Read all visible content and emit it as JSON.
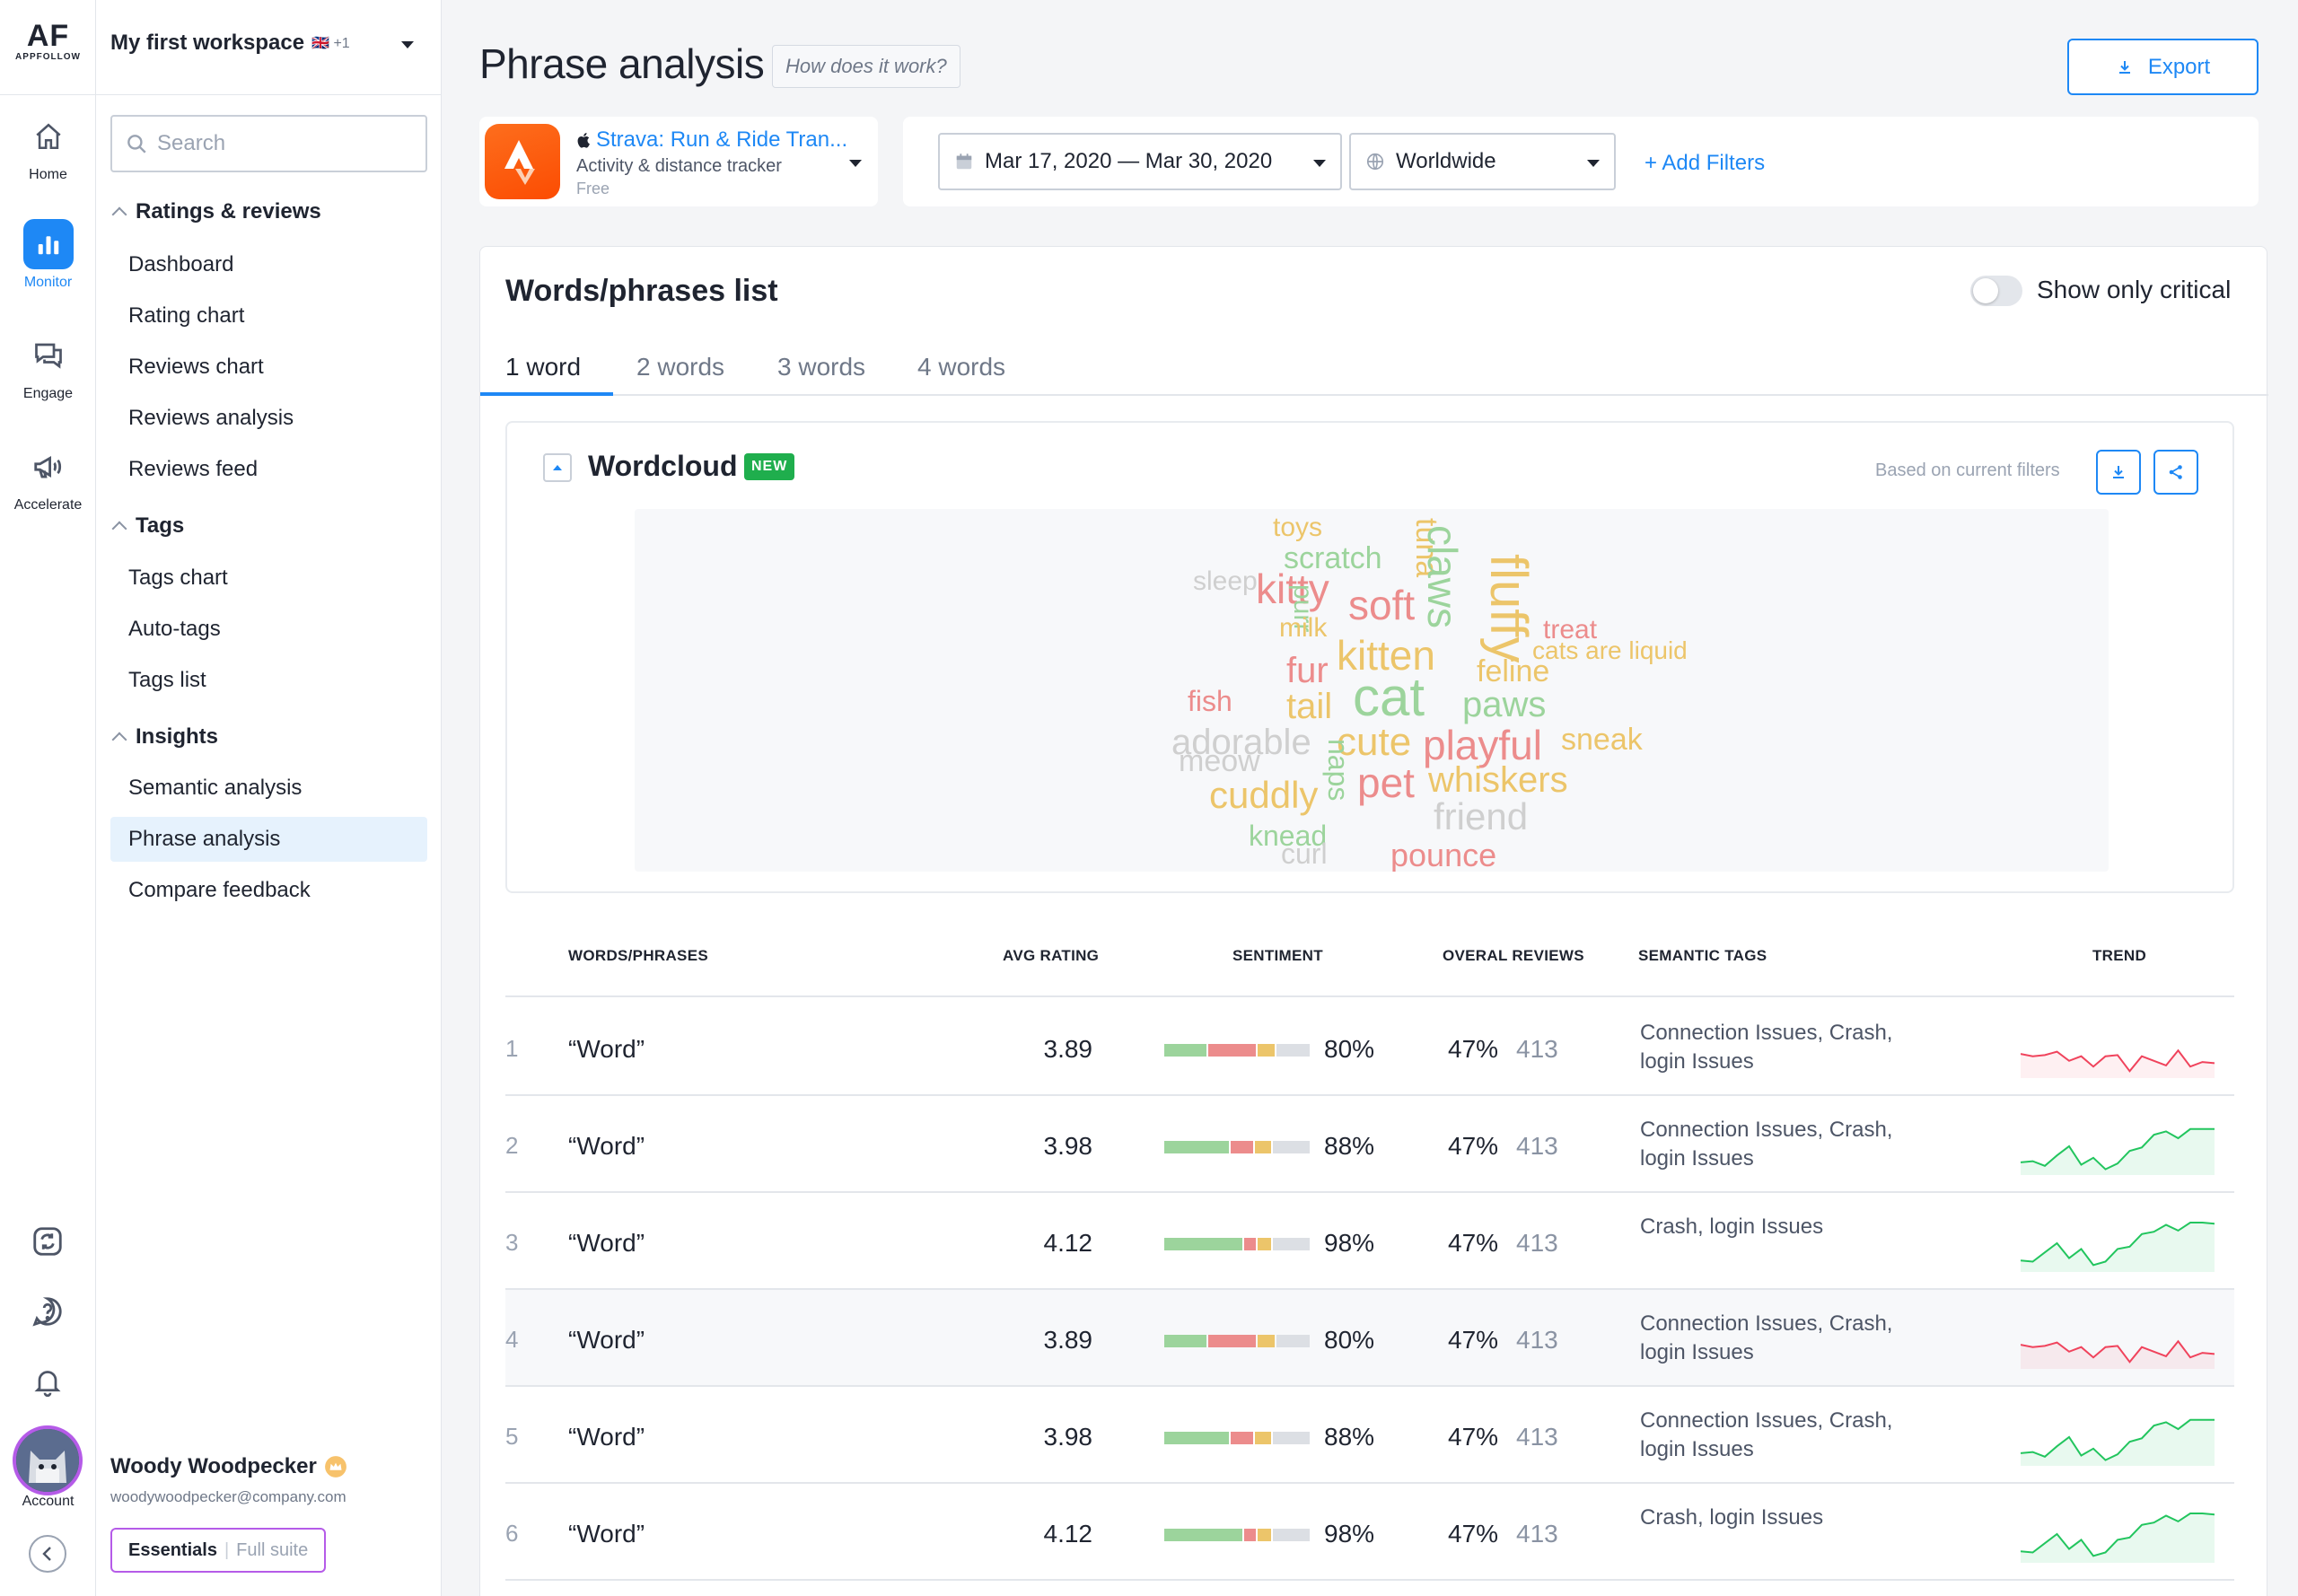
{
  "rail": {
    "logo": "AF",
    "logo_sub": "APPFOLLOW",
    "items": [
      {
        "label": "Home",
        "icon": "home-icon"
      },
      {
        "label": "Monitor",
        "icon": "bar-chart-icon"
      },
      {
        "label": "Engage",
        "icon": "chat-icon"
      },
      {
        "label": "Accelerate",
        "icon": "megaphone-icon"
      }
    ],
    "account_label": "Account"
  },
  "sidebar": {
    "workspace": "My first workspace",
    "workspace_extra": "🇬🇧 +1",
    "search_placeholder": "Search",
    "sections": {
      "ratings": {
        "title": "Ratings & reviews",
        "items": [
          "Dashboard",
          "Rating chart",
          "Reviews chart",
          "Reviews analysis",
          "Reviews feed"
        ]
      },
      "tags": {
        "title": "Tags",
        "items": [
          "Tags chart",
          "Auto-tags",
          "Tags list"
        ]
      },
      "insights": {
        "title": "Insights",
        "items": [
          "Semantic analysis",
          "Phrase analysis",
          "Compare feedback"
        ]
      }
    },
    "user": {
      "name": "Woody Woodpecker",
      "email": "woodywoodpecker@company.com",
      "plan": "Essentials",
      "plan_sep": "|",
      "plan_upgrade": "Full suite"
    }
  },
  "header": {
    "title": "Phrase analysis",
    "how": "How does it work?",
    "export": "Export"
  },
  "app": {
    "name": "Strava: Run & Ride Tran...",
    "subtitle": "Activity & distance tracker",
    "price": "Free"
  },
  "filters": {
    "date_range": "Mar 17, 2020 — Mar 30, 2020",
    "region": "Worldwide",
    "add": "+ Add Filters"
  },
  "panel": {
    "title": "Words/phrases list",
    "toggle_label": "Show only critical",
    "tabs": [
      "1 word",
      "2 words",
      "3 words",
      "4 words"
    ]
  },
  "wordcloud": {
    "title": "Wordcloud",
    "badge": "NEW",
    "note": "Based on current filters",
    "words": [
      {
        "text": "toys",
        "color": "#ecc56a"
      },
      {
        "text": "scratch",
        "color": "#9cd49c"
      },
      {
        "text": "tuna",
        "color": "#ecc56a"
      },
      {
        "text": "claws",
        "color": "#9cd49c"
      },
      {
        "text": "sleep",
        "color": "#cfcfcf"
      },
      {
        "text": "kitty",
        "color": "#ec8c8c"
      },
      {
        "text": "soft",
        "color": "#ec8c8c"
      },
      {
        "text": "fluffy",
        "color": "#ecc56a"
      },
      {
        "text": "purr",
        "color": "#9cd49c"
      },
      {
        "text": "milk",
        "color": "#ecc56a"
      },
      {
        "text": "treat",
        "color": "#ec8c8c"
      },
      {
        "text": "cats are liquid",
        "color": "#ecc56a"
      },
      {
        "text": "kitten",
        "color": "#ecc56a"
      },
      {
        "text": "fur",
        "color": "#ec8c8c"
      },
      {
        "text": "feline",
        "color": "#ecc56a"
      },
      {
        "text": "cat",
        "color": "#9cd49c"
      },
      {
        "text": "fish",
        "color": "#ec8c8c"
      },
      {
        "text": "tail",
        "color": "#ecc56a"
      },
      {
        "text": "paws",
        "color": "#9cd49c"
      },
      {
        "text": "adorable",
        "color": "#cfcfcf"
      },
      {
        "text": "cute",
        "color": "#ecc56a"
      },
      {
        "text": "playful",
        "color": "#ec8c8c"
      },
      {
        "text": "sneak",
        "color": "#ecc56a"
      },
      {
        "text": "meow",
        "color": "#cfcfcf"
      },
      {
        "text": "naps",
        "color": "#9cd49c"
      },
      {
        "text": "pet",
        "color": "#ec8c8c"
      },
      {
        "text": "whiskers",
        "color": "#ecc56a"
      },
      {
        "text": "cuddly",
        "color": "#ecc56a"
      },
      {
        "text": "friend",
        "color": "#cfcfcf"
      },
      {
        "text": "knead",
        "color": "#9cd49c"
      },
      {
        "text": "curl",
        "color": "#cfcfcf"
      },
      {
        "text": "pounce",
        "color": "#ec8c8c"
      }
    ]
  },
  "table": {
    "headers": [
      "WORDS/PHRASES",
      "AVG RATING",
      "SENTIMENT",
      "OVERAL REVIEWS",
      "SEMANTIC TAGS",
      "TREND"
    ],
    "rows": [
      {
        "index": "1",
        "phrase": "“Word”",
        "rating": "3.89",
        "sentiment": "80%",
        "share": "47%",
        "count": "413",
        "tags": "Connection Issues, Crash, login Issues",
        "trend_dir": "down",
        "sentiment_split": [
          30,
          34,
          12,
          24
        ],
        "trend_values": [
          0.58,
          0.62,
          0.6,
          0.54,
          0.7,
          0.62,
          0.8,
          0.62,
          0.6,
          0.88,
          0.62,
          0.7,
          0.78,
          0.52,
          0.8,
          0.72,
          0.74
        ]
      },
      {
        "index": "2",
        "phrase": "“Word”",
        "rating": "3.98",
        "sentiment": "88%",
        "share": "47%",
        "count": "413",
        "tags": "Connection Issues, Crash, login Issues",
        "trend_dir": "up",
        "sentiment_split": [
          46,
          16,
          12,
          26
        ],
        "trend_values": [
          0.78,
          0.76,
          0.84,
          0.66,
          0.5,
          0.82,
          0.7,
          0.9,
          0.8,
          0.58,
          0.52,
          0.3,
          0.24,
          0.36,
          0.2,
          0.2,
          0.2
        ]
      },
      {
        "index": "3",
        "phrase": "“Word”",
        "rating": "4.12",
        "sentiment": "98%",
        "share": "47%",
        "count": "413",
        "tags": "Crash, login Issues",
        "trend_dir": "up",
        "sentiment_split": [
          56,
          8,
          10,
          26
        ],
        "trend_values": [
          0.8,
          0.82,
          0.66,
          0.5,
          0.76,
          0.6,
          0.88,
          0.82,
          0.6,
          0.56,
          0.34,
          0.3,
          0.18,
          0.28,
          0.14,
          0.14,
          0.16
        ]
      },
      {
        "index": "4",
        "phrase": "“Word”",
        "rating": "3.89",
        "sentiment": "80%",
        "share": "47%",
        "count": "413",
        "tags": "Connection Issues, Crash, login Issues",
        "trend_dir": "down",
        "sentiment_split": [
          30,
          34,
          12,
          24
        ],
        "trend_values": [
          0.58,
          0.62,
          0.6,
          0.54,
          0.7,
          0.62,
          0.8,
          0.62,
          0.6,
          0.88,
          0.62,
          0.7,
          0.78,
          0.52,
          0.8,
          0.72,
          0.74
        ]
      },
      {
        "index": "5",
        "phrase": "“Word”",
        "rating": "3.98",
        "sentiment": "88%",
        "share": "47%",
        "count": "413",
        "tags": "Connection Issues, Crash, login Issues",
        "trend_dir": "up",
        "sentiment_split": [
          46,
          16,
          12,
          26
        ],
        "trend_values": [
          0.78,
          0.76,
          0.84,
          0.66,
          0.5,
          0.82,
          0.7,
          0.9,
          0.8,
          0.58,
          0.52,
          0.3,
          0.24,
          0.36,
          0.2,
          0.2,
          0.2
        ]
      },
      {
        "index": "6",
        "phrase": "“Word”",
        "rating": "4.12",
        "sentiment": "98%",
        "share": "47%",
        "count": "413",
        "tags": "Crash, login Issues",
        "trend_dir": "up",
        "sentiment_split": [
          56,
          8,
          10,
          26
        ],
        "trend_values": [
          0.8,
          0.82,
          0.66,
          0.5,
          0.76,
          0.6,
          0.88,
          0.82,
          0.6,
          0.56,
          0.34,
          0.3,
          0.18,
          0.28,
          0.14,
          0.14,
          0.16
        ]
      }
    ]
  },
  "colors": {
    "accent": "#1e88f5",
    "positive": "#9cd49c",
    "negative": "#ec8c8c",
    "neutral": "#ecc56a",
    "empty": "#dcdfe4",
    "trend_up": "#22c55e",
    "trend_down": "#f0435c"
  }
}
